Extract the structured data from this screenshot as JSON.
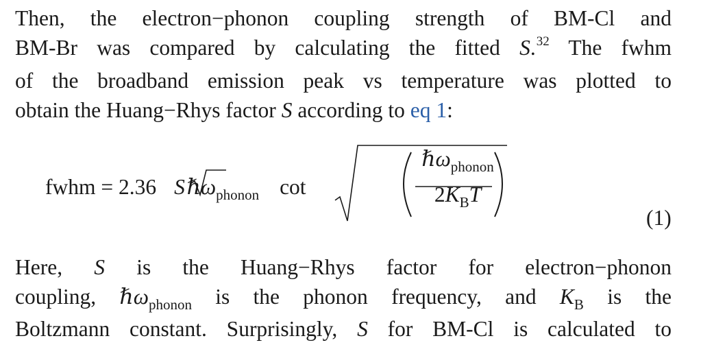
{
  "paragraph1": {
    "lines": [
      {
        "pre": "Then, the electron−phonon coupling strength of BM-Cl and"
      },
      {
        "pre": "BM-Br was compared by calculating the fitted ",
        "var": "S",
        "punct": ".",
        "ref": "32",
        "post": " The fwhm"
      },
      {
        "pre": "of the broadband emission peak vs temperature was plotted to"
      },
      {
        "pre": "obtain the Huang−Rhys factor ",
        "var": "S",
        "post": " according to ",
        "link": "eq 1",
        "end": ":"
      }
    ]
  },
  "equation": {
    "lhs": "fwhm",
    "equals": "=",
    "coefficient": "2.36",
    "S": "S",
    "hbar_omega": "ℏω",
    "phonon_sub": "phonon",
    "func": "cot",
    "denominator_pre": "2",
    "K": "K",
    "B_sub": "B",
    "T": "T",
    "number": "(1)"
  },
  "paragraph2": {
    "line1": {
      "pre": "Here, ",
      "var": "S",
      "post": " is the Huang−Rhys factor for electron−phonon"
    },
    "line2": {
      "pre": "coupling, ",
      "hbar": "ℏω",
      "sub": "phonon",
      "mid": " is the phonon frequency, and ",
      "K": "K",
      "Ksub": "B",
      "post": " is the"
    },
    "line3": {
      "pre": "Boltzmann constant. Surprisingly, ",
      "var": "S",
      "post": " for BM-Cl is calculated to"
    }
  }
}
